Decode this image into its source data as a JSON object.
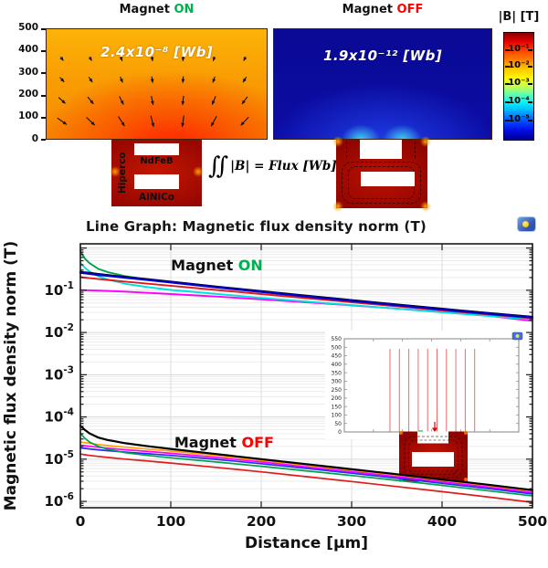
{
  "top": {
    "panel_on": {
      "title_prefix": "Magnet",
      "title_state": "ON",
      "state_color": "#00b050",
      "flux_label": "2.4x10⁻⁸ [Wb]",
      "yticks": [
        "500",
        "400",
        "300",
        "200",
        "100",
        "0"
      ]
    },
    "panel_off": {
      "title_prefix": "Magnet",
      "title_state": "OFF",
      "state_color": "#ff0000",
      "flux_label": "1.9x10⁻¹² [Wb]"
    },
    "structure_on": {
      "left_label": "Hiperco",
      "top_label": "NdFeB",
      "bottom_label": "AlNiCo"
    },
    "formula": {
      "integral": "∬",
      "body": "|B| = Flux [Wb]"
    },
    "colorbar": {
      "title": "|B| [T]",
      "ticks": [
        "10⁻¹",
        "10⁻²",
        "10⁻³",
        "10⁻⁴",
        "10⁻⁵"
      ]
    }
  },
  "chart": {
    "title": "Line Graph: Magnetic flux density norm (T)"
  },
  "chart_data": {
    "type": "line",
    "title": "Line Graph: Magnetic flux density norm (T)",
    "xlabel": "Distance [μm]",
    "ylabel": "Magnetic flux density norm (T)",
    "xlim": [
      0,
      500
    ],
    "xticks": [
      0,
      100,
      200,
      300,
      400,
      500
    ],
    "ytick_exponents": [
      -1,
      -2,
      -3,
      -4,
      -5,
      -6
    ],
    "ylog_range_exp": [
      -6.15,
      0.1
    ],
    "yscale": "log",
    "grid": true,
    "x": [
      0,
      5,
      10,
      20,
      30,
      50,
      75,
      100,
      150,
      200,
      250,
      300,
      350,
      400,
      450,
      500
    ],
    "series": [
      {
        "name": "on-magenta",
        "group": "Magnet ON",
        "color": "#ff00ff",
        "width": 1.9,
        "values": [
          0.101,
          0.1005,
          0.1,
          0.0985,
          0.0965,
          0.0925,
          0.087,
          0.0815,
          0.071,
          0.061,
          0.052,
          0.044,
          0.0368,
          0.0305,
          0.025,
          0.0188
        ]
      },
      {
        "name": "on-cyan",
        "group": "Magnet ON",
        "color": "#00e0e0",
        "width": 1.9,
        "values": [
          0.45,
          0.34,
          0.28,
          0.215,
          0.18,
          0.142,
          0.118,
          0.102,
          0.082,
          0.066,
          0.054,
          0.0445,
          0.0365,
          0.03,
          0.0248,
          0.0205
        ]
      },
      {
        "name": "on-red",
        "group": "Magnet ON",
        "color": "#e01b1b",
        "width": 1.9,
        "values": [
          0.205,
          0.199,
          0.194,
          0.184,
          0.176,
          0.16,
          0.143,
          0.128,
          0.102,
          0.0815,
          0.065,
          0.052,
          0.0417,
          0.0334,
          0.0269,
          0.0218
        ]
      },
      {
        "name": "on-green",
        "group": "Magnet ON",
        "color": "#00a14b",
        "width": 1.9,
        "values": [
          0.85,
          0.56,
          0.44,
          0.32,
          0.27,
          0.215,
          0.18,
          0.155,
          0.118,
          0.092,
          0.072,
          0.057,
          0.045,
          0.036,
          0.029,
          0.023
        ]
      },
      {
        "name": "on-black",
        "group": "Magnet ON",
        "color": "#000000",
        "width": 2.0,
        "values": [
          0.275,
          0.265,
          0.258,
          0.243,
          0.231,
          0.207,
          0.182,
          0.16,
          0.123,
          0.0955,
          0.0745,
          0.0585,
          0.0462,
          0.0366,
          0.0292,
          0.0235
        ]
      },
      {
        "name": "on-blue",
        "group": "Magnet ON",
        "color": "#0000cd",
        "width": 2.4,
        "values": [
          0.262,
          0.253,
          0.246,
          0.232,
          0.221,
          0.198,
          0.175,
          0.154,
          0.118,
          0.0915,
          0.0715,
          0.0562,
          0.0444,
          0.0352,
          0.0281,
          0.0226
        ]
      },
      {
        "name": "off-orange",
        "group": "Magnet OFF",
        "color": "#ffa000",
        "width": 1.7,
        "values": [
          2.55e-05,
          2.45e-05,
          2.37e-05,
          2.22e-05,
          2.1e-05,
          1.92e-05,
          1.73e-05,
          1.56e-05,
          1.22e-05,
          9.4e-06,
          7.2e-06,
          5.5e-06,
          4.2e-06,
          3.15e-06,
          2.38e-06,
          1.75e-06
        ]
      },
      {
        "name": "off-magenta",
        "group": "Magnet OFF",
        "color": "#ff00ff",
        "width": 1.7,
        "values": [
          2.15e-05,
          2.08e-05,
          2.02e-05,
          1.91e-05,
          1.82e-05,
          1.67e-05,
          1.52e-05,
          1.38e-05,
          1.1e-05,
          8.6e-06,
          6.6e-06,
          5.05e-06,
          3.85e-06,
          2.9e-06,
          2.2e-06,
          1.62e-06
        ]
      },
      {
        "name": "off-blue",
        "group": "Magnet OFF",
        "color": "#2a2af5",
        "width": 1.7,
        "values": [
          1.85e-05,
          1.8e-05,
          1.75e-05,
          1.66e-05,
          1.59e-05,
          1.47e-05,
          1.34e-05,
          1.23e-05,
          9.9e-06,
          7.8e-06,
          6.05e-06,
          4.65e-06,
          3.55e-06,
          2.68e-06,
          2.02e-06,
          1.5e-06
        ]
      },
      {
        "name": "off-green",
        "group": "Magnet OFF",
        "color": "#00a14b",
        "width": 1.7,
        "values": [
          4.1e-05,
          3.1e-05,
          2.55e-05,
          2e-05,
          1.73e-05,
          1.42e-05,
          1.22e-05,
          1.08e-05,
          8.6e-06,
          6.8e-06,
          5.3e-06,
          4.1e-06,
          3.15e-06,
          2.4e-06,
          1.8e-06,
          1.35e-06
        ]
      },
      {
        "name": "off-red",
        "group": "Magnet OFF",
        "color": "#e01b1b",
        "width": 1.7,
        "values": [
          1.32e-05,
          1.27e-05,
          1.23e-05,
          1.16e-05,
          1.1e-05,
          1e-05,
          9e-06,
          8.1e-06,
          6.4e-06,
          5e-06,
          3.85e-06,
          2.95e-06,
          2.25e-06,
          1.7e-06,
          1.28e-06,
          9.5e-07
        ]
      },
      {
        "name": "off-black",
        "group": "Magnet OFF",
        "color": "#000000",
        "width": 2.2,
        "values": [
          6.2e-05,
          4.9e-05,
          4.1e-05,
          3.25e-05,
          2.85e-05,
          2.38e-05,
          2.02e-05,
          1.75e-05,
          1.32e-05,
          1e-05,
          7.6e-06,
          5.8e-06,
          4.4e-06,
          3.3e-06,
          2.5e-06,
          1.85e-06
        ]
      }
    ],
    "annotations": [
      {
        "prefix": "Magnet ",
        "state": "ON",
        "state_color": "#00b050",
        "x": 151,
        "value": 0.3
      },
      {
        "prefix": "Magnet ",
        "state": "OFF",
        "state_color": "#ff0000",
        "x": 159,
        "value": 1.9e-05
      }
    ],
    "inset": {
      "yticks": [
        550,
        500,
        450,
        400,
        350,
        300,
        250,
        200,
        150,
        100,
        50,
        0
      ],
      "cut_lines": 10
    }
  }
}
